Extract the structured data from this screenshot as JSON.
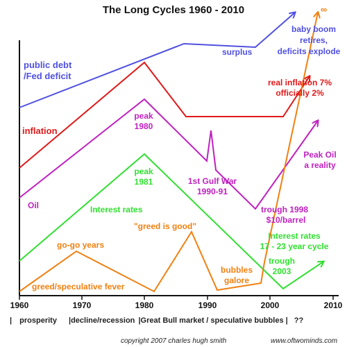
{
  "title": "The Long Cycles 1960 - 2010",
  "colors": {
    "debt": "#5050e0",
    "inflation": "#e01818",
    "oil": "#c020c0",
    "rates": "#30e030",
    "speculation": "#f08010",
    "axis": "#111111"
  },
  "axis": {
    "ticks": [
      "1960",
      "1970",
      "1980",
      "1990",
      "2000",
      "2010"
    ]
  },
  "series_labels": {
    "debt": [
      "public debt",
      "/Fed deficit"
    ],
    "inflation": "inflation",
    "oil": "Oil",
    "rates": "Interest rates",
    "speculation": "greed/speculative fever"
  },
  "annotations": {
    "surplus": "surplus",
    "boomers": [
      "baby boom",
      "retires,",
      "deficits explode"
    ],
    "infinity": "∞",
    "real_inflation": [
      "real inflation 7%",
      "officially 2%"
    ],
    "peak_1980": [
      "peak",
      "1980"
    ],
    "gulf_war": [
      "1st Gulf War",
      "1990-91"
    ],
    "trough_1998": [
      "trough 1998",
      "$10/barrel"
    ],
    "peak_oil": [
      "Peak Oil",
      "a reality"
    ],
    "peak_1981": [
      "peak",
      "1981"
    ],
    "greed_good": "\"greed is good\"",
    "gogo": "go-go years",
    "cycle": [
      "Interest rates",
      "17 -  23 year cycle"
    ],
    "trough_2003": [
      "trough",
      "2003"
    ],
    "bubbles": [
      "bubbles",
      "galore"
    ]
  },
  "eras": {
    "prosperity": "prosperity",
    "decline": "decline/recession",
    "bull": "Great Bull market / speculative bubbles",
    "unknown": "??"
  },
  "credits": {
    "left": "copyright 2007 charles hugh smith",
    "right": "www.oftwominds.com"
  }
}
